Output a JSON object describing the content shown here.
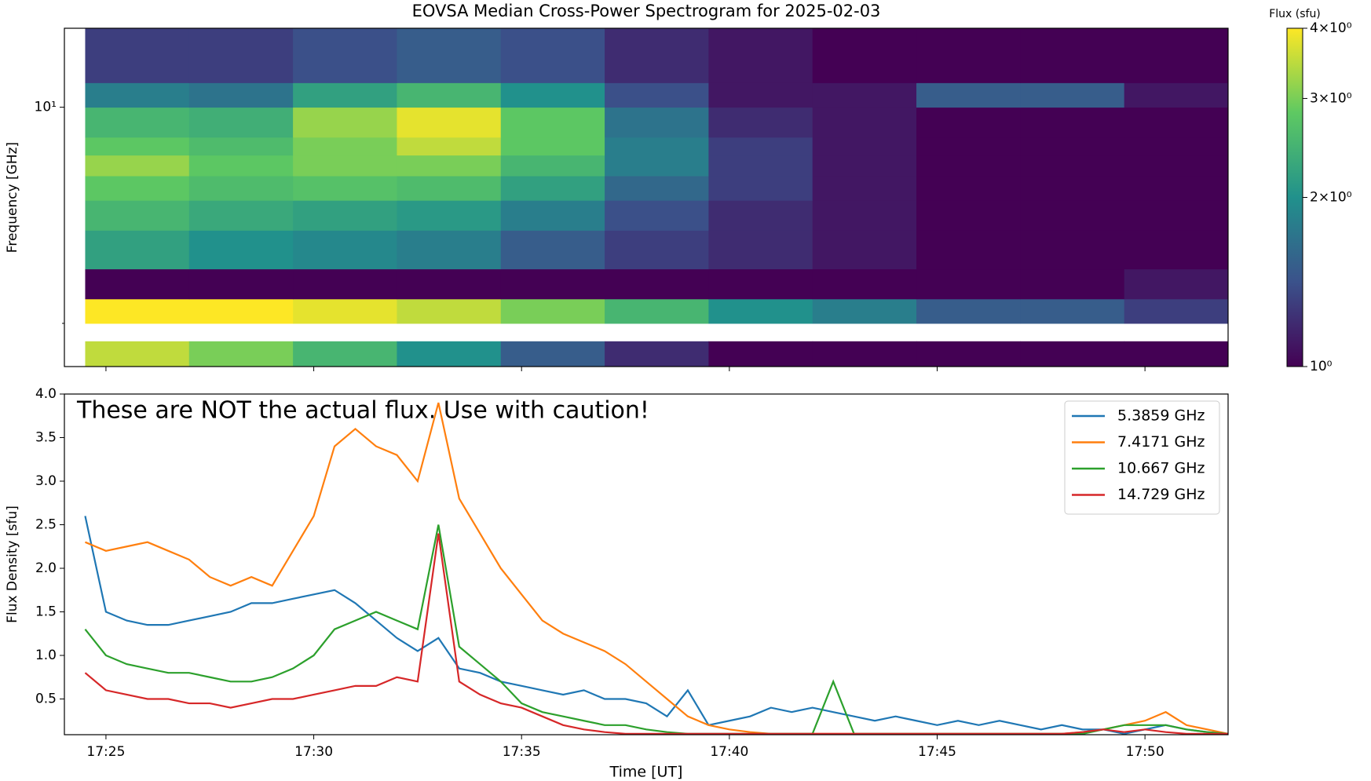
{
  "chart_data": [
    {
      "type": "heatmap",
      "title": "EOVSA Median Cross-Power Spectrogram for 2025-02-03",
      "y_label": "Frequency [GHz]",
      "yscale": "log",
      "colormap": "viridis",
      "xlim": [
        24.0,
        52.0
      ],
      "xticks": [
        25,
        30,
        35,
        40,
        45,
        50
      ],
      "ylim": [
        1.45,
        18
      ],
      "yticks": [
        {
          "value": 10,
          "label": "10¹"
        }
      ],
      "yminorticks": [
        2
      ],
      "times": [
        24.5,
        27,
        29.5,
        32,
        34.5,
        37,
        39.5,
        42,
        44.5,
        47,
        49.5,
        52
      ],
      "freqs": [
        1.45,
        1.75,
        2.0,
        2.4,
        3,
        4,
        5,
        6,
        7,
        8,
        10,
        12,
        18
      ],
      "values": [
        [
          3.5,
          3,
          2.5,
          2,
          1.5,
          1.2,
          1,
          1,
          1,
          1,
          1
        ],
        [
          null,
          null,
          null,
          null,
          null,
          null,
          null,
          null,
          null,
          null,
          null
        ],
        [
          4,
          4,
          3.8,
          3.5,
          3,
          2.5,
          2,
          1.8,
          1.5,
          1.5,
          1.3
        ],
        [
          1,
          1,
          1,
          1,
          1,
          1,
          1,
          1,
          1,
          1,
          1.1
        ],
        [
          2.2,
          2,
          1.9,
          1.8,
          1.5,
          1.3,
          1.2,
          1.1,
          1,
          1,
          1
        ],
        [
          2.5,
          2.3,
          2.2,
          2.1,
          1.8,
          1.4,
          1.2,
          1.1,
          1,
          1,
          1
        ],
        [
          2.8,
          2.6,
          2.7,
          2.6,
          2.2,
          1.6,
          1.3,
          1.1,
          1,
          1,
          1
        ],
        [
          3.2,
          2.8,
          3,
          3,
          2.5,
          1.8,
          1.3,
          1.1,
          1,
          1,
          1
        ],
        [
          2.8,
          2.6,
          3,
          3.5,
          2.8,
          1.8,
          1.3,
          1.1,
          1,
          1,
          1
        ],
        [
          2.5,
          2.4,
          3.2,
          3.8,
          2.8,
          1.7,
          1.2,
          1.1,
          1,
          1,
          1
        ],
        [
          1.8,
          1.7,
          2.2,
          2.5,
          2,
          1.4,
          1.1,
          1.1,
          1.5,
          1.5,
          1.1
        ],
        [
          1.3,
          1.3,
          1.4,
          1.5,
          1.4,
          1.2,
          1.1,
          1,
          1,
          1,
          1
        ]
      ],
      "colorbar": {
        "label": "Flux (sfu)",
        "lim": [
          1,
          4
        ],
        "ticks": [
          {
            "value": 1,
            "label": "10⁰"
          },
          {
            "value": 2,
            "label": "2×10⁰"
          },
          {
            "value": 3,
            "label": "3×10⁰"
          },
          {
            "value": 4,
            "label": "4×10⁰"
          }
        ]
      }
    },
    {
      "type": "line",
      "x_label": "Time [UT]",
      "y_label": "Flux Density [sfu]",
      "annotation": "These are NOT the actual flux. Use with caution!",
      "legend": "upper right",
      "xlim": [
        24.0,
        52.0
      ],
      "xticks": [
        {
          "value": 25,
          "label": "17:25"
        },
        {
          "value": 30,
          "label": "17:30"
        },
        {
          "value": 35,
          "label": "17:35"
        },
        {
          "value": 40,
          "label": "17:40"
        },
        {
          "value": 45,
          "label": "17:45"
        },
        {
          "value": 50,
          "label": "17:50"
        }
      ],
      "ylim": [
        0.09,
        4.0
      ],
      "yticks": [
        0.5,
        {
          "value": 1,
          "label": "1.0"
        },
        1.5,
        {
          "value": 2,
          "label": "2.0"
        },
        2.5,
        {
          "value": 3,
          "label": "3.0"
        },
        3.5,
        {
          "value": 4,
          "label": "4.0"
        }
      ],
      "x": [
        24.5,
        25,
        25.5,
        26,
        26.5,
        27,
        27.5,
        28,
        28.5,
        29,
        29.5,
        30,
        30.5,
        31,
        31.5,
        32,
        32.5,
        33,
        33.5,
        34,
        34.5,
        35,
        35.5,
        36,
        36.5,
        37,
        37.5,
        38,
        38.5,
        39,
        39.5,
        40,
        40.5,
        41,
        41.5,
        42,
        42.5,
        43,
        43.5,
        44,
        44.5,
        45,
        45.5,
        46,
        46.5,
        47,
        47.5,
        48,
        48.5,
        49,
        49.5,
        50,
        50.5,
        51,
        51.5,
        52
      ],
      "series": [
        {
          "name": "5.3859 GHz",
          "color": "#1f77b4",
          "values": [
            2.6,
            1.5,
            1.4,
            1.35,
            1.35,
            1.4,
            1.45,
            1.5,
            1.6,
            1.6,
            1.65,
            1.7,
            1.75,
            1.6,
            1.4,
            1.2,
            1.05,
            1.2,
            0.85,
            0.8,
            0.7,
            0.65,
            0.6,
            0.55,
            0.6,
            0.5,
            0.5,
            0.45,
            0.3,
            0.6,
            0.2,
            0.25,
            0.3,
            0.4,
            0.35,
            0.4,
            0.35,
            0.3,
            0.25,
            0.3,
            0.25,
            0.2,
            0.25,
            0.2,
            0.25,
            0.2,
            0.15,
            0.2,
            0.15,
            0.15,
            0.1,
            0.15,
            0.2,
            0.15,
            0.12,
            0.1
          ]
        },
        {
          "name": "7.4171 GHz",
          "color": "#ff7f0e",
          "values": [
            2.3,
            2.2,
            2.25,
            2.3,
            2.2,
            2.1,
            1.9,
            1.8,
            1.9,
            1.8,
            2.2,
            2.6,
            3.4,
            3.6,
            3.4,
            3.3,
            3.0,
            3.9,
            2.8,
            2.4,
            2.0,
            1.7,
            1.4,
            1.25,
            1.15,
            1.05,
            0.9,
            0.7,
            0.5,
            0.3,
            0.2,
            0.15,
            0.12,
            0.1,
            0.1,
            0.1,
            0.1,
            0.1,
            0.1,
            0.1,
            0.1,
            0.1,
            0.1,
            0.1,
            0.1,
            0.1,
            0.1,
            0.1,
            0.12,
            0.15,
            0.2,
            0.25,
            0.35,
            0.2,
            0.15,
            0.1
          ]
        },
        {
          "name": "10.667 GHz",
          "color": "#2ca02c",
          "values": [
            1.3,
            1.0,
            0.9,
            0.85,
            0.8,
            0.8,
            0.75,
            0.7,
            0.7,
            0.75,
            0.85,
            1.0,
            1.3,
            1.4,
            1.5,
            1.4,
            1.3,
            2.5,
            1.1,
            0.9,
            0.7,
            0.45,
            0.35,
            0.3,
            0.25,
            0.2,
            0.2,
            0.15,
            0.12,
            0.1,
            0.1,
            0.1,
            0.1,
            0.1,
            0.1,
            0.1,
            0.7,
            0.1,
            0.1,
            0.1,
            0.1,
            0.1,
            0.1,
            0.1,
            0.1,
            0.1,
            0.1,
            0.1,
            0.1,
            0.15,
            0.2,
            0.2,
            0.2,
            0.15,
            0.12,
            0.1
          ]
        },
        {
          "name": "14.729 GHz",
          "color": "#d62728",
          "values": [
            0.8,
            0.6,
            0.55,
            0.5,
            0.5,
            0.45,
            0.45,
            0.4,
            0.45,
            0.5,
            0.5,
            0.55,
            0.6,
            0.65,
            0.65,
            0.75,
            0.7,
            2.4,
            0.7,
            0.55,
            0.45,
            0.4,
            0.3,
            0.2,
            0.15,
            0.12,
            0.1,
            0.1,
            0.1,
            0.1,
            0.1,
            0.1,
            0.1,
            0.1,
            0.1,
            0.1,
            0.1,
            0.1,
            0.1,
            0.1,
            0.1,
            0.1,
            0.1,
            0.1,
            0.1,
            0.1,
            0.1,
            0.1,
            0.12,
            0.15,
            0.12,
            0.15,
            0.12,
            0.1,
            0.1,
            0.1
          ]
        }
      ]
    }
  ]
}
